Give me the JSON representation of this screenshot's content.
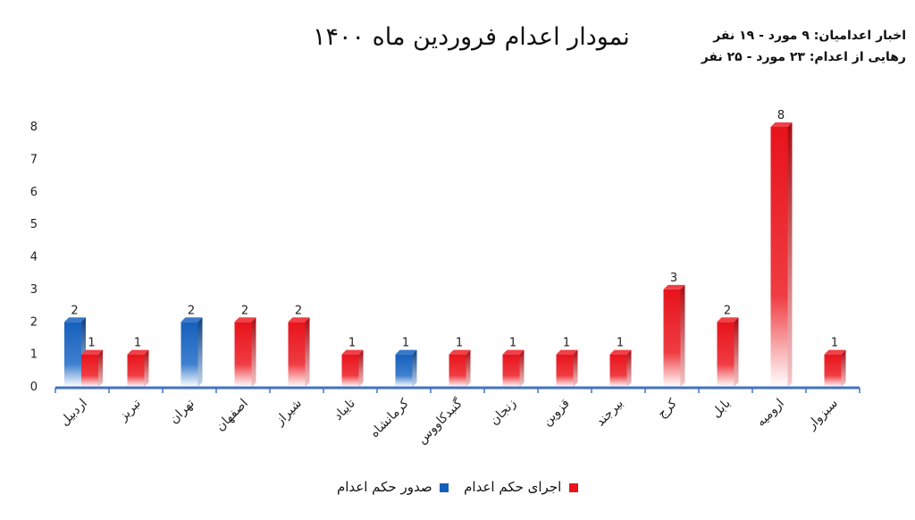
{
  "header": {
    "title": "نمودار اعدام فروردین ماه ۱۴۰۰",
    "stats_line1": "اخبار اعدامیان: ۹ مورد - ۱۹ نفر",
    "stats_line2": "رهایی از اعدام: ۲۳ مورد - ۲۵ نفر"
  },
  "legend": {
    "red_label": "اجرای حکم اعدام",
    "blue_label": "صدور حکم اعدام"
  },
  "colors": {
    "red": "#e8131b",
    "blue": "#1560bd"
  },
  "chart_data": {
    "type": "bar",
    "title": "نمودار اعدام فروردین ماه ۱۴۰۰",
    "xlabel": "",
    "ylabel": "",
    "ylim": [
      0,
      8
    ],
    "yticks": [
      "0",
      "1",
      "2",
      "3",
      "4",
      "5",
      "6",
      "7",
      "8"
    ],
    "grid": false,
    "legend_position": "bottom",
    "categories": [
      "اردبیل",
      "تبریز",
      "تهران",
      "اصفهان",
      "شیراز",
      "تایباد",
      "کرمانشاه",
      "گنبدکاووس",
      "زنجان",
      "قزوین",
      "بیرجند",
      "کرج",
      "بابل",
      "ارومیه",
      "سبزوار"
    ],
    "series": [
      {
        "name": "صدور حکم اعدام",
        "color": "#1560bd",
        "values": [
          2,
          null,
          2,
          null,
          null,
          null,
          1,
          null,
          null,
          null,
          null,
          null,
          null,
          null,
          null
        ]
      },
      {
        "name": "اجرای حکم اعدام",
        "color": "#e8131b",
        "values": [
          1,
          1,
          null,
          2,
          2,
          1,
          null,
          1,
          1,
          1,
          1,
          3,
          2,
          8,
          1
        ]
      }
    ]
  }
}
